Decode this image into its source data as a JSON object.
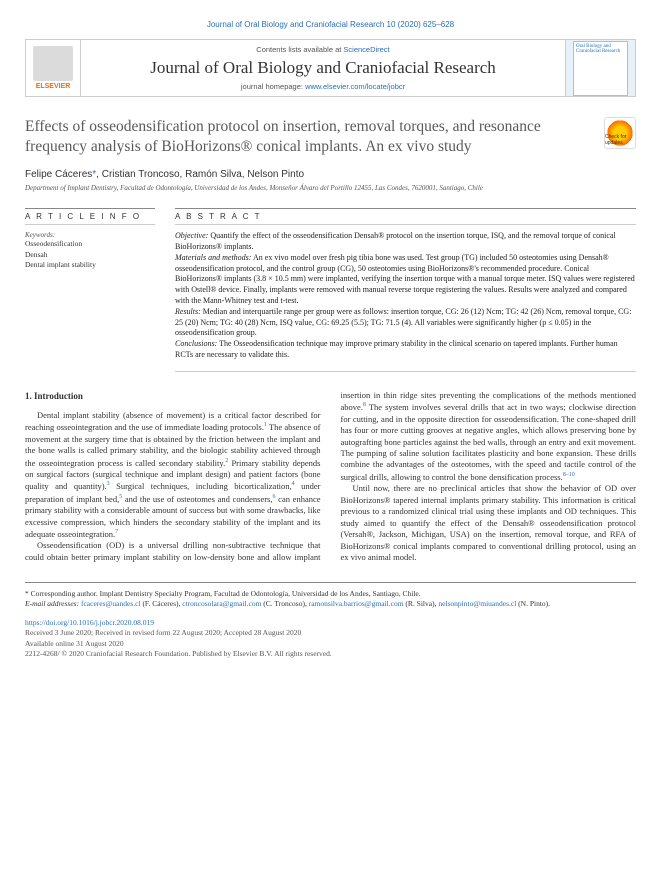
{
  "journal_ref": "Journal of Oral Biology and Craniofacial Research 10 (2020) 625–628",
  "header": {
    "contents_prefix": "Contents lists available at ",
    "contents_link": "ScienceDirect",
    "journal_name": "Journal of Oral Biology and Craniofacial Research",
    "homepage_prefix": "journal homepage: ",
    "homepage_link": "www.elsevier.com/locate/jobcr",
    "publisher": "ELSEVIER",
    "cover_text": "Oral Biology and Craniofacial Research"
  },
  "title": "Effects of osseodensification protocol on insertion, removal torques, and resonance frequency analysis of BioHorizons® conical implants. An ex vivo study",
  "check_badge": "Check for updates",
  "authors": {
    "a1": "Felipe Cáceres",
    "corr": "*",
    "a2": ", Cristian Troncoso, Ramón Silva, Nelson Pinto"
  },
  "affiliation": "Department of Implant Dentistry, Facultad de Odontología, Universidad de los Andes, Monseñor Álvaro del Portillo 12455, Las Condes, 7620001, Santiago, Chile",
  "article_info": {
    "header": "A R T I C L E  I N F O",
    "keywords_label": "Keywords:",
    "k1": "Osseodensification",
    "k2": "Densah",
    "k3": "Dental implant stability"
  },
  "abstract": {
    "header": "A B S T R A C T",
    "objective_label": "Objective:",
    "objective": " Quantify the effect of the osseodensification Densah® protocol on the insertion torque, ISQ, and the removal torque of conical BioHorizons® implants.",
    "materials_label": "Materials and methods:",
    "materials": " An ex vivo model over fresh pig tibia bone was used. Test group (TG) included 50 osteotomies using Densah® osseodensification protocol, and the control group (CG), 50 osteotomies using BioHorizons®'s recommended procedure. Conical BioHorizons® implants (3.8 × 10.5 mm) were implanted, verifying the insertion torque with a manual torque meter. ISQ values were registered with Ostell® device. Finally, implants were removed with manual reverse torque registering the values. Results were analyzed and compared with the Mann-Whitney test and t-test.",
    "results_label": "Results:",
    "results": " Median and interquartile range per group were as follows: insertion torque, CG: 26 (12) Ncm; TG: 42 (26) Ncm, removal torque, CG: 25 (20) Ncm; TG: 40 (28) Ncm, ISQ value, CG: 69.25 (5.5); TG: 71.5 (4). All variables were significantly higher (p ≤ 0.05) in the osseodensification group.",
    "conclusions_label": "Conclusions:",
    "conclusions": " The Osseodensification technique may improve primary stability in the clinical scenario on tapered implants. Further human RCTs are necessary to validate this."
  },
  "intro": {
    "header": "1. Introduction",
    "p1a": "Dental implant stability (absence of movement) is a critical factor described for reaching osseointegration and the use of immediate loading protocols.",
    "p1b": " The absence of movement at the surgery time that is obtained by the friction between the implant and the bone walls is called primary stability, and the biologic stability achieved through the osseointegration process is called secondary stability.",
    "p1c": " Primary stability depends on surgical factors (surgical technique and implant design) and patient factors (bone quality and quantity).",
    "p1d": " Surgical techniques, including bicorticalization,",
    "p1e": " under preparation of implant bed,",
    "p1f": " and the use of osteotomes and condensers,",
    "p1g": " can enhance primary stability with a considerable amount of success but with some drawbacks, like excessive compression, which hinders the secondary stability of the implant and its adequate osseointegration.",
    "p2a": "Osseodensification (OD) is a universal drilling non-subtractive technique that could obtain better primary implant stability on low-density bone and allow implant insertion in thin ridge sites preventing ",
    "p2b": "the complications of the methods mentioned above.",
    "p2c": " The system involves several drills that act in two ways; clockwise direction for cutting, and in the opposite direction for osseodensification. The cone-shaped drill has four or more cutting grooves at negative angles, which allows preserving bone by autografting bone particles against the bed walls, through an entry and exit movement. The pumping of saline solution facilitates plasticity and bone expansion. These drills combine the advantages of the osteotomes, with the speed and tactile control of the surgical drills, allowing to control the bone densification process.",
    "p3": "Until now, there are no preclinical articles that show the behavior of OD over BioHorizons® tapered internal implants primary stability. This information is critical previous to a randomized clinical trial using these implants and OD techniques. This study aimed to quantify the effect of the Densah® osseodensification protocol (Versah®, Jackson, Michigan, USA) on the insertion, removal torque, and RFA of BioHorizons® conical implants compared to conventional drilling protocol, using an ex vivo animal model."
  },
  "footer": {
    "corr_line": "* Corresponding author. Implant Dentistry Specialty Program, Facultad de Odontología, Universidad de los Andes, Santiago, Chile.",
    "email_label": "E-mail addresses: ",
    "e1": "fcaceres@uandes.cl",
    "e1n": " (F. Cáceres), ",
    "e2": "ctroncosolara@gmail.com",
    "e2n": " (C. Troncoso), ",
    "e3": "ramonsilva.barrios@gmail.com",
    "e3n": " (R. Silva), ",
    "e4": "nelsonpinto@miuandes.cl",
    "e4n": " (N. Pinto).",
    "doi": "https://doi.org/10.1016/j.jobcr.2020.08.019",
    "received": "Received 3 June 2020; Received in revised form 22 August 2020; Accepted 28 August 2020",
    "available": "Available online 31 August 2020",
    "copyright": "2212-4268/ © 2020 Craniofacial Research Foundation. Published by Elsevier B.V. All rights reserved."
  },
  "refs": {
    "r1": "1",
    "r2": "2",
    "r3": "3",
    "r4": "4",
    "r5": "5",
    "r6": "6",
    "r7": "7",
    "r8": "8",
    "r810": "8–10"
  }
}
